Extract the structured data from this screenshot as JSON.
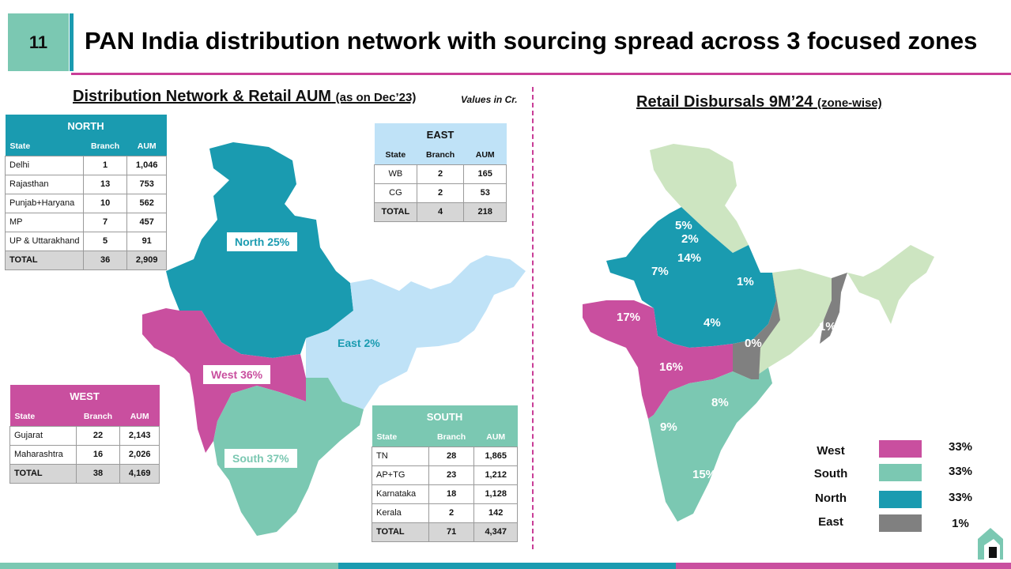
{
  "slide": {
    "number": "11",
    "title": "PAN India distribution network with sourcing spread across 3 focused zones"
  },
  "left": {
    "heading": "Distribution Network & Retail AUM",
    "heading_note": "(as on Dec’23)",
    "values_note": "Values in Cr.",
    "map_labels": {
      "north": "North 25%",
      "east": "East 2%",
      "west": "West 36%",
      "south": "South 37%"
    },
    "columns": {
      "state": "State",
      "branch": "Branch",
      "aum": "AUM"
    },
    "north": {
      "title": "NORTH",
      "rows": [
        {
          "state": "Delhi",
          "branch": "1",
          "aum": "1,046"
        },
        {
          "state": "Rajasthan",
          "branch": "13",
          "aum": "753"
        },
        {
          "state": "Punjab+Haryana",
          "branch": "10",
          "aum": "562"
        },
        {
          "state": "MP",
          "branch": "7",
          "aum": "457"
        },
        {
          "state": "UP & Uttarakhand",
          "branch": "5",
          "aum": "91"
        }
      ],
      "total": {
        "state": "TOTAL",
        "branch": "36",
        "aum": "2,909"
      }
    },
    "east": {
      "title": "EAST",
      "rows": [
        {
          "state": "WB",
          "branch": "2",
          "aum": "165"
        },
        {
          "state": "CG",
          "branch": "2",
          "aum": "53"
        }
      ],
      "total": {
        "state": "TOTAL",
        "branch": "4",
        "aum": "218"
      }
    },
    "west": {
      "title": "WEST",
      "rows": [
        {
          "state": "Gujarat",
          "branch": "22",
          "aum": "2,143"
        },
        {
          "state": "Maharashtra",
          "branch": "16",
          "aum": "2,026"
        }
      ],
      "total": {
        "state": "TOTAL",
        "branch": "38",
        "aum": "4,169"
      }
    },
    "south": {
      "title": "SOUTH",
      "rows": [
        {
          "state": "TN",
          "branch": "28",
          "aum": "1,865"
        },
        {
          "state": "AP+TG",
          "branch": "23",
          "aum": "1,212"
        },
        {
          "state": "Karnataka",
          "branch": "18",
          "aum": "1,128"
        },
        {
          "state": "Kerala",
          "branch": "2",
          "aum": "142"
        }
      ],
      "total": {
        "state": "TOTAL",
        "branch": "71",
        "aum": "4,347"
      }
    }
  },
  "right": {
    "heading": "Retail Disbursals 9M’24",
    "heading_note": "(zone-wise)",
    "state_pcts": {
      "jk": "5%",
      "hp": "2%",
      "pb_hr": "14%",
      "rajasthan": "7%",
      "up": "1%",
      "mp": "4%",
      "gujarat": "17%",
      "maharashtra": "16%",
      "chhattisgarh": "0%",
      "wb": "1%",
      "karnataka": "9%",
      "ap_tg": "8%",
      "tn": "15%"
    },
    "legend": [
      {
        "label": "West",
        "value": "33%",
        "color": "#c94f9f"
      },
      {
        "label": "South",
        "value": "33%",
        "color": "#7bc8b2"
      },
      {
        "label": "North",
        "value": "33%",
        "color": "#1a9bb0"
      },
      {
        "label": "East",
        "value": "1%",
        "color": "#808080"
      }
    ]
  },
  "colors": {
    "north": "#1a9bb0",
    "west": "#c94f9f",
    "south": "#7bc8b2",
    "east_light": "#bfe2f7",
    "east_grey": "#808080",
    "other": "#cde5c1",
    "accent": "#c93d97"
  }
}
